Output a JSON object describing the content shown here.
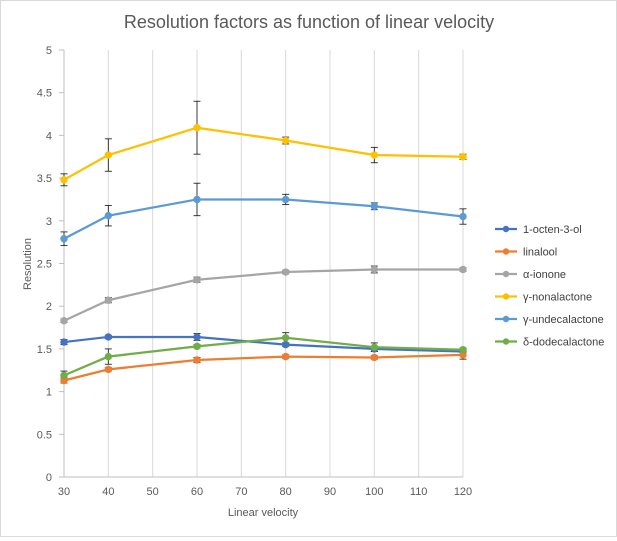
{
  "chart_data": {
    "type": "line",
    "title": "Resolution factors as function of linear velocity",
    "xlabel": "Linear velocity",
    "ylabel": "Resolution",
    "xlim": [
      30,
      120
    ],
    "ylim": [
      0,
      5
    ],
    "x_ticks": [
      "30",
      "40",
      "50",
      "60",
      "70",
      "80",
      "90",
      "100",
      "110",
      "120"
    ],
    "y_ticks": [
      "0",
      "0.5",
      "1",
      "1.5",
      "2",
      "2.5",
      "3",
      "3.5",
      "4",
      "4.5",
      "5"
    ],
    "grid": "vertical",
    "legend_position": "right",
    "x": [
      30,
      40,
      60,
      80,
      100,
      120
    ],
    "series": [
      {
        "name": "1-octen-3-ol",
        "color": "#4472C4",
        "values": [
          1.58,
          1.64,
          1.64,
          1.55,
          1.5,
          1.47
        ],
        "errors": [
          0.03,
          0.02,
          0.04,
          0.02,
          0.03,
          0.03
        ]
      },
      {
        "name": "linalool",
        "color": "#ED7D31",
        "values": [
          1.13,
          1.26,
          1.37,
          1.41,
          1.4,
          1.43
        ],
        "errors": [
          0.03,
          0.02,
          0.03,
          0.02,
          0.02,
          0.05
        ]
      },
      {
        "name": "α-ionone",
        "color": "#A5A5A5",
        "values": [
          1.83,
          2.07,
          2.31,
          2.4,
          2.43,
          2.43
        ],
        "errors": [
          0.02,
          0.03,
          0.03,
          0.02,
          0.04,
          0.02
        ]
      },
      {
        "name": "γ-nonalactone",
        "color": "#FFC000",
        "values": [
          3.48,
          3.77,
          4.09,
          3.94,
          3.77,
          3.75
        ],
        "errors": [
          0.07,
          0.19,
          0.31,
          0.04,
          0.09,
          0.03
        ]
      },
      {
        "name": "γ-undecalactone",
        "color": "#5B9BD5",
        "values": [
          2.79,
          3.06,
          3.25,
          3.25,
          3.17,
          3.05
        ],
        "errors": [
          0.08,
          0.12,
          0.19,
          0.06,
          0.04,
          0.09
        ]
      },
      {
        "name": "δ-dodecalactone",
        "color": "#70AD47",
        "values": [
          1.19,
          1.41,
          1.53,
          1.63,
          1.52,
          1.49
        ],
        "errors": [
          0.05,
          0.09,
          0.02,
          0.06,
          0.05,
          0.02
        ]
      }
    ]
  }
}
